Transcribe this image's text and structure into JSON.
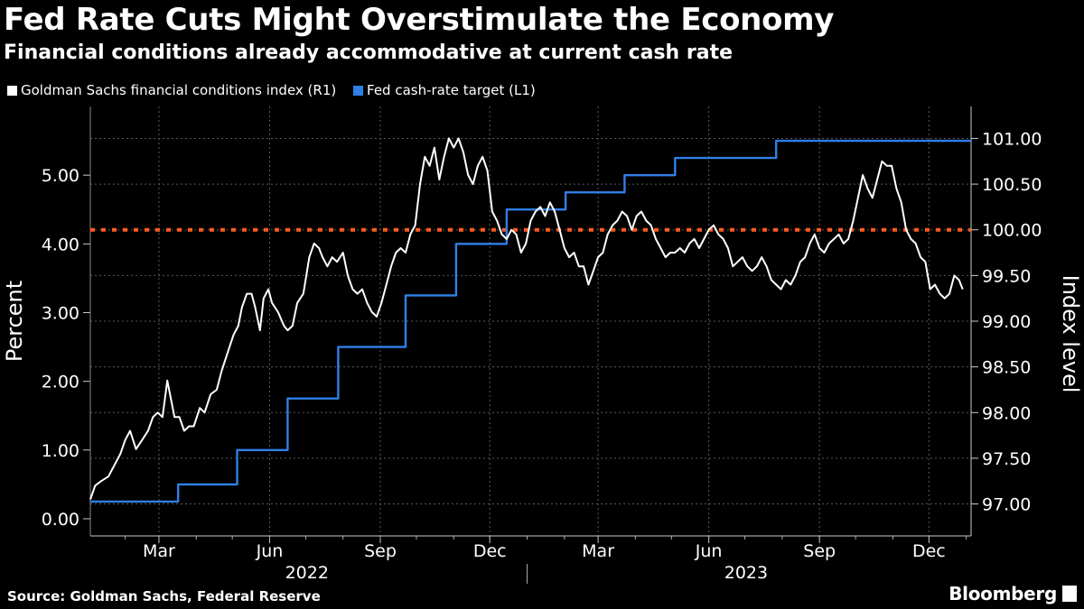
{
  "header": {
    "title": "Fed Rate Cuts Might Overstimulate the Economy",
    "subtitle": "Financial conditions already accommodative at current cash rate"
  },
  "legend": [
    {
      "label": "Goldman Sachs financial conditions index (R1)",
      "color": "#ffffff"
    },
    {
      "label": "Fed cash-rate target (L1)",
      "color": "#2f80e8"
    }
  ],
  "footer": {
    "source": "Source: Goldman Sachs, Federal Reserve",
    "logo": "Bloomberg"
  },
  "chart_data": {
    "type": "line",
    "title": "Fed Rate Cuts Might Overstimulate the Economy",
    "subtitle": "Financial conditions already accommodative at current cash rate",
    "x_range": [
      "2022-01-03",
      "2024-01-05"
    ],
    "x_ticks": [
      {
        "date": "2022-03-01",
        "label": "Mar"
      },
      {
        "date": "2022-06-01",
        "label": "Jun"
      },
      {
        "date": "2022-09-01",
        "label": "Sep"
      },
      {
        "date": "2022-12-01",
        "label": "Dec"
      },
      {
        "date": "2023-03-01",
        "label": "Mar"
      },
      {
        "date": "2023-06-01",
        "label": "Jun"
      },
      {
        "date": "2023-09-01",
        "label": "Sep"
      },
      {
        "date": "2023-12-01",
        "label": "Dec"
      }
    ],
    "year_labels": [
      {
        "label": "2022",
        "center_date": "2022-07-02"
      },
      {
        "label": "2023",
        "center_date": "2023-07-02"
      }
    ],
    "year_separator": "2023-01-01",
    "left_axis": {
      "label": "Percent",
      "ylim": [
        -0.25,
        6.0
      ],
      "ticks": [
        0,
        1,
        2,
        3,
        4,
        5
      ],
      "tick_labels": [
        "0.00",
        "1.00",
        "2.00",
        "3.00",
        "4.00",
        "5.00"
      ]
    },
    "right_axis": {
      "label": "Index level",
      "ylim": [
        96.65,
        101.35
      ],
      "ticks": [
        97,
        97.5,
        98,
        98.5,
        99,
        99.5,
        100,
        100.5,
        101
      ],
      "tick_labels": [
        "97.00",
        "97.50",
        "98.00",
        "98.50",
        "99.00",
        "99.50",
        "100.00",
        "100.50",
        "101.00"
      ]
    },
    "reference_line": {
      "axis": "right",
      "value": 100.0,
      "color": "#ff5a1f",
      "style": "dotted"
    },
    "series": [
      {
        "name": "Fed cash-rate target (L1)",
        "axis": "left",
        "color": "#2f80e8",
        "step": true,
        "points": [
          [
            "2022-01-03",
            0.25
          ],
          [
            "2022-03-17",
            0.5
          ],
          [
            "2022-05-05",
            1.0
          ],
          [
            "2022-06-16",
            1.75
          ],
          [
            "2022-07-28",
            2.5
          ],
          [
            "2022-09-22",
            3.25
          ],
          [
            "2022-11-03",
            4.0
          ],
          [
            "2022-12-15",
            4.5
          ],
          [
            "2023-02-02",
            4.75
          ],
          [
            "2023-03-23",
            5.0
          ],
          [
            "2023-05-04",
            5.25
          ],
          [
            "2023-07-27",
            5.5
          ],
          [
            "2024-01-05",
            5.5
          ]
        ]
      },
      {
        "name": "Goldman Sachs financial conditions index (R1)",
        "axis": "right",
        "color": "#ffffff",
        "points": [
          [
            "2022-01-03",
            97.05
          ],
          [
            "2022-01-07",
            97.2
          ],
          [
            "2022-01-12",
            97.25
          ],
          [
            "2022-01-18",
            97.3
          ],
          [
            "2022-01-24",
            97.45
          ],
          [
            "2022-01-28",
            97.55
          ],
          [
            "2022-02-01",
            97.7
          ],
          [
            "2022-02-05",
            97.8
          ],
          [
            "2022-02-10",
            97.6
          ],
          [
            "2022-02-15",
            97.7
          ],
          [
            "2022-02-20",
            97.8
          ],
          [
            "2022-02-24",
            97.95
          ],
          [
            "2022-02-28",
            98.0
          ],
          [
            "2022-03-04",
            97.95
          ],
          [
            "2022-03-08",
            98.35
          ],
          [
            "2022-03-11",
            98.15
          ],
          [
            "2022-03-14",
            97.95
          ],
          [
            "2022-03-18",
            97.95
          ],
          [
            "2022-03-22",
            97.8
          ],
          [
            "2022-03-26",
            97.85
          ],
          [
            "2022-03-30",
            97.85
          ],
          [
            "2022-04-04",
            98.05
          ],
          [
            "2022-04-08",
            98.0
          ],
          [
            "2022-04-13",
            98.2
          ],
          [
            "2022-04-18",
            98.25
          ],
          [
            "2022-04-22",
            98.45
          ],
          [
            "2022-04-27",
            98.65
          ],
          [
            "2022-05-02",
            98.85
          ],
          [
            "2022-05-06",
            98.95
          ],
          [
            "2022-05-09",
            99.15
          ],
          [
            "2022-05-13",
            99.3
          ],
          [
            "2022-05-17",
            99.3
          ],
          [
            "2022-05-20",
            99.15
          ],
          [
            "2022-05-24",
            98.9
          ],
          [
            "2022-05-27",
            99.25
          ],
          [
            "2022-05-31",
            99.35
          ],
          [
            "2022-06-03",
            99.2
          ],
          [
            "2022-06-08",
            99.1
          ],
          [
            "2022-06-13",
            98.95
          ],
          [
            "2022-06-16",
            98.9
          ],
          [
            "2022-06-20",
            98.95
          ],
          [
            "2022-06-24",
            99.2
          ],
          [
            "2022-06-29",
            99.3
          ],
          [
            "2022-07-04",
            99.7
          ],
          [
            "2022-07-08",
            99.85
          ],
          [
            "2022-07-12",
            99.8
          ],
          [
            "2022-07-15",
            99.7
          ],
          [
            "2022-07-19",
            99.6
          ],
          [
            "2022-07-23",
            99.7
          ],
          [
            "2022-07-27",
            99.65
          ],
          [
            "2022-08-01",
            99.75
          ],
          [
            "2022-08-05",
            99.5
          ],
          [
            "2022-08-09",
            99.35
          ],
          [
            "2022-08-13",
            99.3
          ],
          [
            "2022-08-17",
            99.35
          ],
          [
            "2022-08-21",
            99.2
          ],
          [
            "2022-08-25",
            99.1
          ],
          [
            "2022-08-29",
            99.05
          ],
          [
            "2022-09-02",
            99.2
          ],
          [
            "2022-09-06",
            99.4
          ],
          [
            "2022-09-10",
            99.6
          ],
          [
            "2022-09-14",
            99.75
          ],
          [
            "2022-09-18",
            99.8
          ],
          [
            "2022-09-22",
            99.75
          ],
          [
            "2022-09-26",
            99.95
          ],
          [
            "2022-09-30",
            100.05
          ],
          [
            "2022-10-04",
            100.5
          ],
          [
            "2022-10-08",
            100.8
          ],
          [
            "2022-10-12",
            100.7
          ],
          [
            "2022-10-16",
            100.9
          ],
          [
            "2022-10-20",
            100.55
          ],
          [
            "2022-10-24",
            100.8
          ],
          [
            "2022-10-28",
            101.0
          ],
          [
            "2022-11-01",
            100.9
          ],
          [
            "2022-11-05",
            101.0
          ],
          [
            "2022-11-09",
            100.85
          ],
          [
            "2022-11-13",
            100.6
          ],
          [
            "2022-11-17",
            100.5
          ],
          [
            "2022-11-21",
            100.7
          ],
          [
            "2022-11-25",
            100.8
          ],
          [
            "2022-11-29",
            100.65
          ],
          [
            "2022-12-03",
            100.2
          ],
          [
            "2022-12-07",
            100.1
          ],
          [
            "2022-12-11",
            99.95
          ],
          [
            "2022-12-15",
            99.9
          ],
          [
            "2022-12-19",
            100.0
          ],
          [
            "2022-12-23",
            99.95
          ],
          [
            "2022-12-27",
            99.75
          ],
          [
            "2022-12-31",
            99.85
          ],
          [
            "2023-01-04",
            100.1
          ],
          [
            "2023-01-08",
            100.2
          ],
          [
            "2023-01-12",
            100.25
          ],
          [
            "2023-01-16",
            100.15
          ],
          [
            "2023-01-20",
            100.3
          ],
          [
            "2023-01-24",
            100.2
          ],
          [
            "2023-01-28",
            100.0
          ],
          [
            "2023-02-01",
            99.8
          ],
          [
            "2023-02-05",
            99.7
          ],
          [
            "2023-02-09",
            99.75
          ],
          [
            "2023-02-13",
            99.6
          ],
          [
            "2023-02-17",
            99.6
          ],
          [
            "2023-02-21",
            99.4
          ],
          [
            "2023-02-25",
            99.55
          ],
          [
            "2023-03-01",
            99.7
          ],
          [
            "2023-03-05",
            99.75
          ],
          [
            "2023-03-09",
            99.95
          ],
          [
            "2023-03-13",
            100.05
          ],
          [
            "2023-03-17",
            100.1
          ],
          [
            "2023-03-21",
            100.2
          ],
          [
            "2023-03-25",
            100.15
          ],
          [
            "2023-03-29",
            100.0
          ],
          [
            "2023-04-02",
            100.15
          ],
          [
            "2023-04-06",
            100.2
          ],
          [
            "2023-04-10",
            100.1
          ],
          [
            "2023-04-14",
            100.05
          ],
          [
            "2023-04-18",
            99.9
          ],
          [
            "2023-04-22",
            99.8
          ],
          [
            "2023-04-26",
            99.7
          ],
          [
            "2023-04-30",
            99.75
          ],
          [
            "2023-05-04",
            99.75
          ],
          [
            "2023-05-08",
            99.8
          ],
          [
            "2023-05-12",
            99.75
          ],
          [
            "2023-05-16",
            99.85
          ],
          [
            "2023-05-20",
            99.9
          ],
          [
            "2023-05-24",
            99.8
          ],
          [
            "2023-05-28",
            99.9
          ],
          [
            "2023-06-01",
            100.0
          ],
          [
            "2023-06-05",
            100.05
          ],
          [
            "2023-06-09",
            99.95
          ],
          [
            "2023-06-13",
            99.9
          ],
          [
            "2023-06-17",
            99.8
          ],
          [
            "2023-06-21",
            99.6
          ],
          [
            "2023-06-25",
            99.65
          ],
          [
            "2023-06-29",
            99.7
          ],
          [
            "2023-07-03",
            99.6
          ],
          [
            "2023-07-07",
            99.55
          ],
          [
            "2023-07-11",
            99.6
          ],
          [
            "2023-07-15",
            99.7
          ],
          [
            "2023-07-19",
            99.6
          ],
          [
            "2023-07-23",
            99.45
          ],
          [
            "2023-07-27",
            99.4
          ],
          [
            "2023-07-31",
            99.35
          ],
          [
            "2023-08-04",
            99.45
          ],
          [
            "2023-08-08",
            99.4
          ],
          [
            "2023-08-12",
            99.5
          ],
          [
            "2023-08-16",
            99.65
          ],
          [
            "2023-08-20",
            99.7
          ],
          [
            "2023-08-24",
            99.85
          ],
          [
            "2023-08-28",
            99.95
          ],
          [
            "2023-09-01",
            99.8
          ],
          [
            "2023-09-05",
            99.75
          ],
          [
            "2023-09-09",
            99.85
          ],
          [
            "2023-09-13",
            99.9
          ],
          [
            "2023-09-17",
            99.95
          ],
          [
            "2023-09-21",
            99.85
          ],
          [
            "2023-09-25",
            99.9
          ],
          [
            "2023-09-29",
            100.1
          ],
          [
            "2023-10-03",
            100.35
          ],
          [
            "2023-10-07",
            100.6
          ],
          [
            "2023-10-11",
            100.45
          ],
          [
            "2023-10-15",
            100.35
          ],
          [
            "2023-10-19",
            100.55
          ],
          [
            "2023-10-23",
            100.75
          ],
          [
            "2023-10-27",
            100.7
          ],
          [
            "2023-10-31",
            100.7
          ],
          [
            "2023-11-04",
            100.45
          ],
          [
            "2023-11-08",
            100.3
          ],
          [
            "2023-11-12",
            100.0
          ],
          [
            "2023-11-16",
            99.9
          ],
          [
            "2023-11-20",
            99.85
          ],
          [
            "2023-11-24",
            99.7
          ],
          [
            "2023-11-28",
            99.65
          ],
          [
            "2023-12-02",
            99.35
          ],
          [
            "2023-12-06",
            99.4
          ],
          [
            "2023-12-10",
            99.3
          ],
          [
            "2023-12-14",
            99.25
          ],
          [
            "2023-12-18",
            99.3
          ],
          [
            "2023-12-22",
            99.5
          ],
          [
            "2023-12-26",
            99.45
          ],
          [
            "2023-12-29",
            99.35
          ]
        ]
      }
    ]
  }
}
